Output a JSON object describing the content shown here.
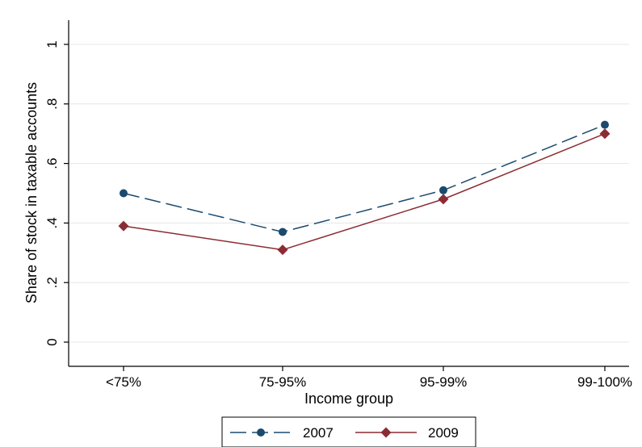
{
  "chart_data": {
    "type": "line",
    "categories": [
      "<75%",
      "75-95%",
      "95-99%",
      "99-100%"
    ],
    "series": [
      {
        "name": "2007",
        "values": [
          0.5,
          0.37,
          0.51,
          0.73
        ],
        "color": "#1a4a6e",
        "marker": "circle",
        "line_style": "dashed"
      },
      {
        "name": "2009",
        "values": [
          0.39,
          0.31,
          0.48,
          0.7
        ],
        "color": "#8b2c34",
        "marker": "diamond",
        "line_style": "solid"
      }
    ],
    "xlabel": "Income group",
    "ylabel": "Share of stock in taxable accounts",
    "ylim": [
      0,
      1
    ],
    "yticks": [
      {
        "value": 0,
        "label": "0"
      },
      {
        "value": 0.2,
        "label": ".2"
      },
      {
        "value": 0.4,
        "label": ".4"
      },
      {
        "value": 0.6,
        "label": ".6"
      },
      {
        "value": 0.8,
        "label": ".8"
      },
      {
        "value": 1,
        "label": "1"
      }
    ],
    "grid": true,
    "legend_position": "bottom"
  }
}
